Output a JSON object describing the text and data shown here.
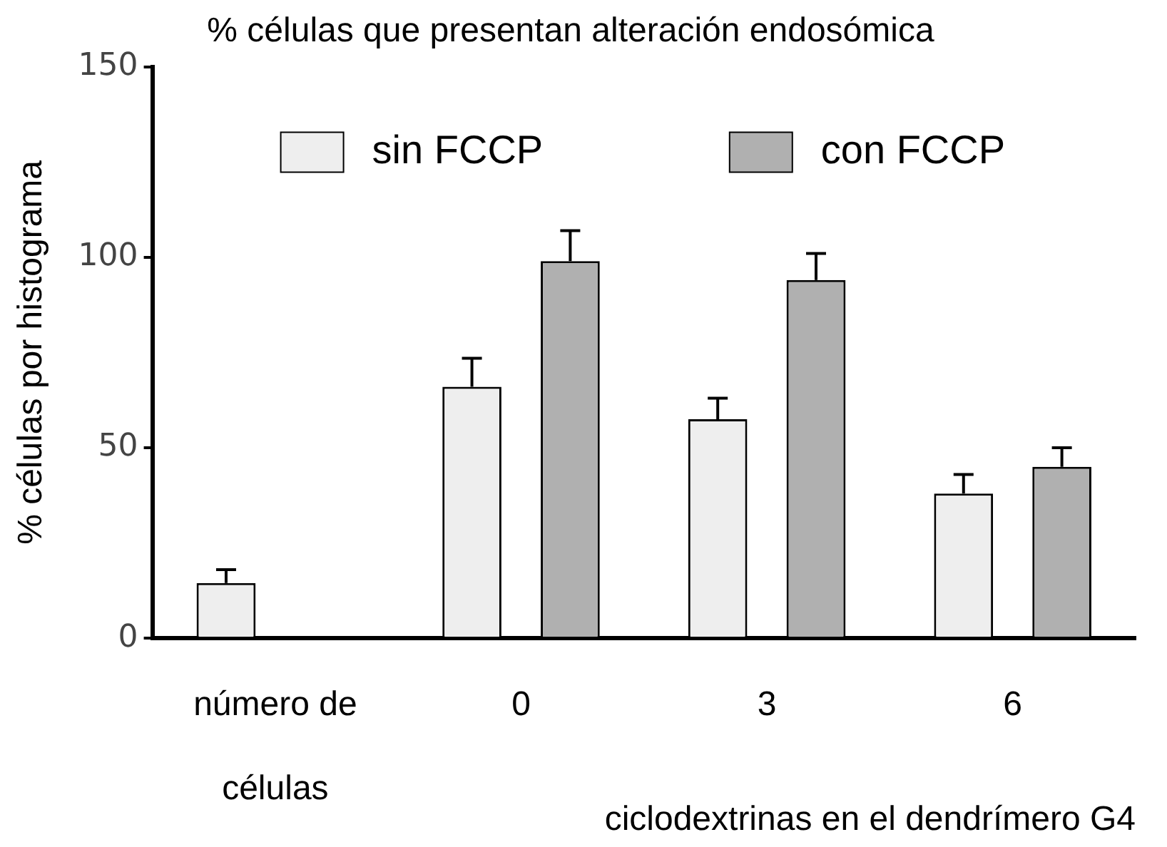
{
  "chart_data": {
    "type": "bar",
    "title": "% células que presentan alteración endosómica",
    "xlabel": "ciclodextrinas en el dendrímero G4",
    "ylabel": "% células por histograma",
    "categories": [
      "número de células",
      "0",
      "3",
      "6"
    ],
    "series": [
      {
        "name": "sin FCCP",
        "color": "#eeeeee",
        "values": [
          14.5,
          66,
          57.5,
          38
        ],
        "errors": [
          [
            14.5,
            18
          ],
          [
            66,
            73.5
          ],
          [
            57.5,
            63
          ],
          [
            38,
            43
          ]
        ]
      },
      {
        "name": "con FCCP",
        "color": "#b0b0b0",
        "values": [
          null,
          99,
          94,
          45
        ],
        "errors": [
          null,
          [
            99,
            107
          ],
          [
            94,
            101
          ],
          [
            45,
            50
          ]
        ]
      }
    ],
    "ylim": [
      0,
      150
    ],
    "yticks": [
      0,
      50,
      100,
      150
    ],
    "grid": false,
    "legend": "top"
  }
}
